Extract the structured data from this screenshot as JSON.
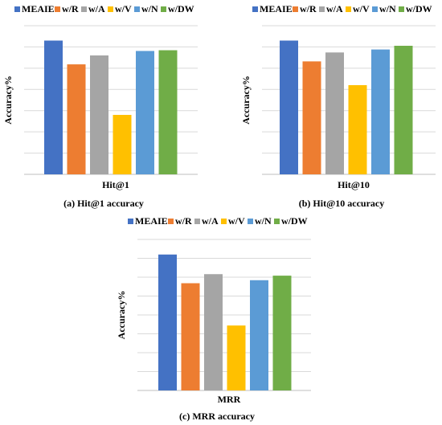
{
  "colors": {
    "MEAIE": "#4472C4",
    "w/R": "#ED7D31",
    "w/A": "#A5A5A5",
    "w/V": "#FFC000",
    "w/N": "#5B9BD5",
    "w/DW": "#70AD47",
    "gridline": "#d9d9d9",
    "axis": "#bfbfbf"
  },
  "chart_data": [
    {
      "type": "bar",
      "categories": [
        "Hit@1"
      ],
      "series": [
        {
          "name": "MEAIE",
          "values": [
            0.9
          ]
        },
        {
          "name": "w/R",
          "values": [
            0.74
          ]
        },
        {
          "name": "w/A",
          "values": [
            0.8
          ]
        },
        {
          "name": "w/V",
          "values": [
            0.4
          ]
        },
        {
          "name": "w/N",
          "values": [
            0.83
          ]
        },
        {
          "name": "w/DW",
          "values": [
            0.835
          ]
        }
      ],
      "xlabel": "Hit@1",
      "ylabel": "Accuracy%",
      "ylim": [
        0,
        1
      ],
      "grid": true,
      "gridlines": 7,
      "legend": "top",
      "caption": "(a) Hit@1 accuracy"
    },
    {
      "type": "bar",
      "categories": [
        "Hit@10"
      ],
      "series": [
        {
          "name": "MEAIE",
          "values": [
            0.9
          ]
        },
        {
          "name": "w/R",
          "values": [
            0.76
          ]
        },
        {
          "name": "w/A",
          "values": [
            0.82
          ]
        },
        {
          "name": "w/V",
          "values": [
            0.6
          ]
        },
        {
          "name": "w/N",
          "values": [
            0.84
          ]
        },
        {
          "name": "w/DW",
          "values": [
            0.865
          ]
        }
      ],
      "xlabel": "Hit@10",
      "ylabel": "Accuracy%",
      "ylim": [
        0,
        1
      ],
      "grid": true,
      "gridlines": 7,
      "legend": "top",
      "caption": "(b) Hit@10 accuracy"
    },
    {
      "type": "bar",
      "categories": [
        "MRR"
      ],
      "series": [
        {
          "name": "MEAIE",
          "values": [
            0.9
          ]
        },
        {
          "name": "w/R",
          "values": [
            0.71
          ]
        },
        {
          "name": "w/A",
          "values": [
            0.77
          ]
        },
        {
          "name": "w/V",
          "values": [
            0.43
          ]
        },
        {
          "name": "w/N",
          "values": [
            0.73
          ]
        },
        {
          "name": "w/DW",
          "values": [
            0.76
          ]
        }
      ],
      "xlabel": "MRR",
      "ylabel": "Accuracy%",
      "ylim": [
        0,
        1
      ],
      "grid": true,
      "gridlines": 8,
      "legend": "top",
      "caption": "(c) MRR accuracy"
    }
  ]
}
